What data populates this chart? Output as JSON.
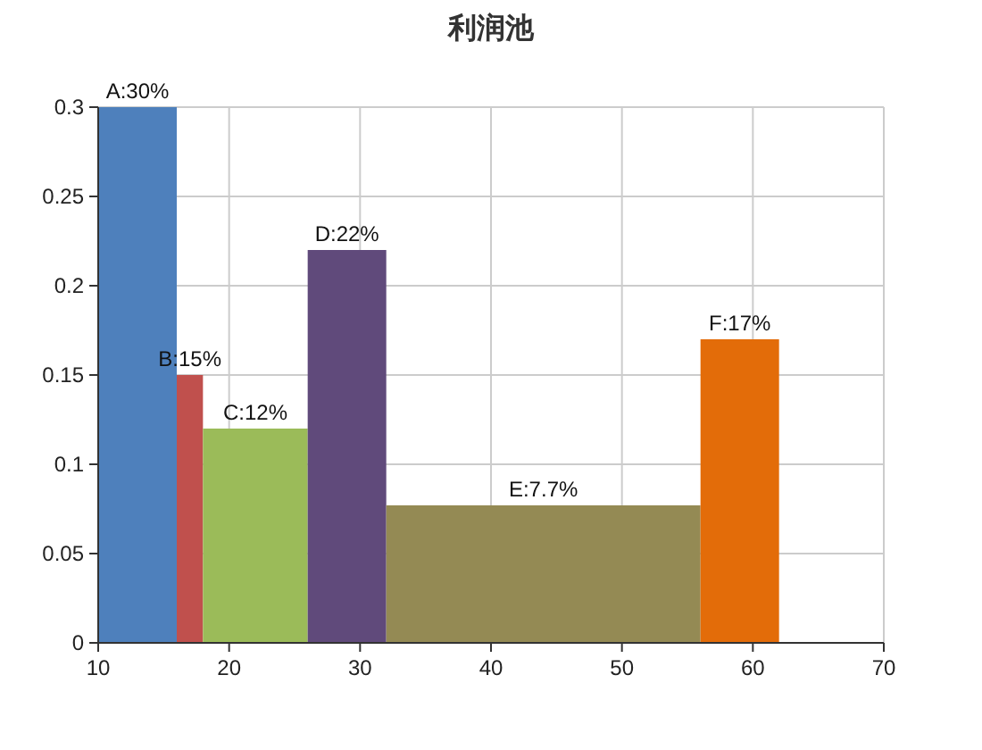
{
  "chart_data": {
    "type": "histogram",
    "title": "利润池",
    "bins": [
      10,
      16,
      18,
      26,
      32,
      56,
      62
    ],
    "values": [
      0.3,
      0.15,
      0.12,
      0.22,
      0.077,
      0.17
    ],
    "colors": [
      "#4e80bc",
      "#c0504d",
      "#9bbb59",
      "#604a7b",
      "#948a54",
      "#e36c09"
    ],
    "value_labels": [
      "A:30%",
      "B:15%",
      "C:12%",
      "D:22%",
      "E:7.7%",
      "F:17%"
    ],
    "xlim": [
      10,
      70
    ],
    "ylim": [
      0,
      0.3
    ],
    "xticks": [
      10,
      20,
      30,
      40,
      50,
      60,
      70
    ],
    "yticks": [
      0,
      0.05,
      0.1,
      0.15,
      0.2,
      0.25,
      0.3
    ],
    "grid": true
  }
}
